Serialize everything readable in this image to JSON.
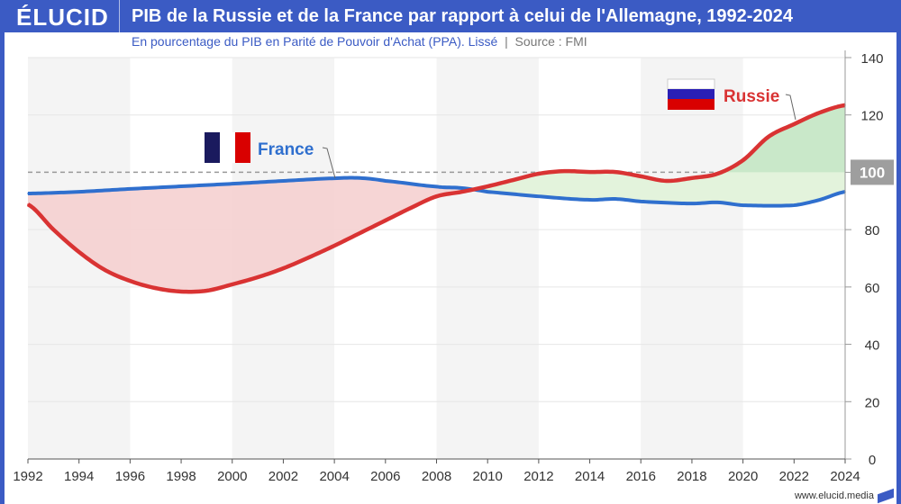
{
  "header": {
    "logo": "ÉLUCID",
    "title": "PIB de la Russie et de la France par rapport à celui de l'Allemagne, 1992-2024",
    "subtitle": "En pourcentage du PIB en Parité de Pouvoir d'Achat (PPA). Lissé",
    "source": "Source : FMI"
  },
  "footer": {
    "url": "www.elucid.media"
  },
  "colors": {
    "brand": "#3b5bc4",
    "france": "#2f6fce",
    "russie": "#d93333",
    "fill_negative": "#f5d0d0",
    "fill_positive": "#e3f3dc",
    "fill_above_100": "#c9e8c9"
  },
  "chart_data": {
    "type": "line",
    "title": "PIB de la Russie et de la France par rapport à celui de l'Allemagne, 1992-2024",
    "xlim": [
      1992,
      2024
    ],
    "ylim": [
      0,
      140
    ],
    "x_ticks": [
      "1992",
      "1994",
      "1996",
      "1998",
      "2000",
      "2002",
      "2004",
      "2006",
      "2008",
      "2010",
      "2012",
      "2014",
      "2016",
      "2018",
      "2020",
      "2022",
      "2024"
    ],
    "y_ticks": [
      "0",
      "20",
      "40",
      "60",
      "80",
      "100",
      "120",
      "140"
    ],
    "reference_line": 100,
    "reference_label": "100",
    "y_axis_position": "right",
    "grid": true,
    "series": [
      {
        "name": "France",
        "color": "#2f6fce",
        "x": [
          1992,
          1994,
          1996,
          1998,
          2000,
          2002,
          2004,
          2005,
          2006,
          2008,
          2009,
          2010,
          2012,
          2014,
          2015,
          2016,
          2018,
          2019,
          2020,
          2022,
          2023,
          2024
        ],
        "values": [
          92.6,
          93.2,
          94.2,
          95.1,
          96,
          97,
          97.9,
          98,
          97,
          95,
          94.5,
          93.2,
          91.6,
          90.4,
          90.7,
          89.8,
          89.1,
          89.5,
          88.5,
          88.5,
          90.4,
          93.2
        ]
      },
      {
        "name": "Russie",
        "color": "#d93333",
        "x": [
          1992,
          1993,
          1994,
          1995,
          1996,
          1997,
          1998,
          1999,
          2000,
          2001,
          2002,
          2003,
          2004,
          2005,
          2006,
          2007,
          2008,
          2009,
          2010,
          2011,
          2012,
          2013,
          2014,
          2015,
          2016,
          2017,
          2018,
          2019,
          2020,
          2021,
          2022,
          2023,
          2024
        ],
        "values": [
          88.8,
          80,
          72.2,
          66,
          62.1,
          59.6,
          58.4,
          58.7,
          60.9,
          63.4,
          66.5,
          70.3,
          74.4,
          78.8,
          83.2,
          87.6,
          91.6,
          93.2,
          95.1,
          97.3,
          99.5,
          100.4,
          100.1,
          100.1,
          98.6,
          97,
          98,
          99.5,
          104.2,
          112.4,
          116.8,
          120.8,
          123.4
        ]
      }
    ]
  }
}
